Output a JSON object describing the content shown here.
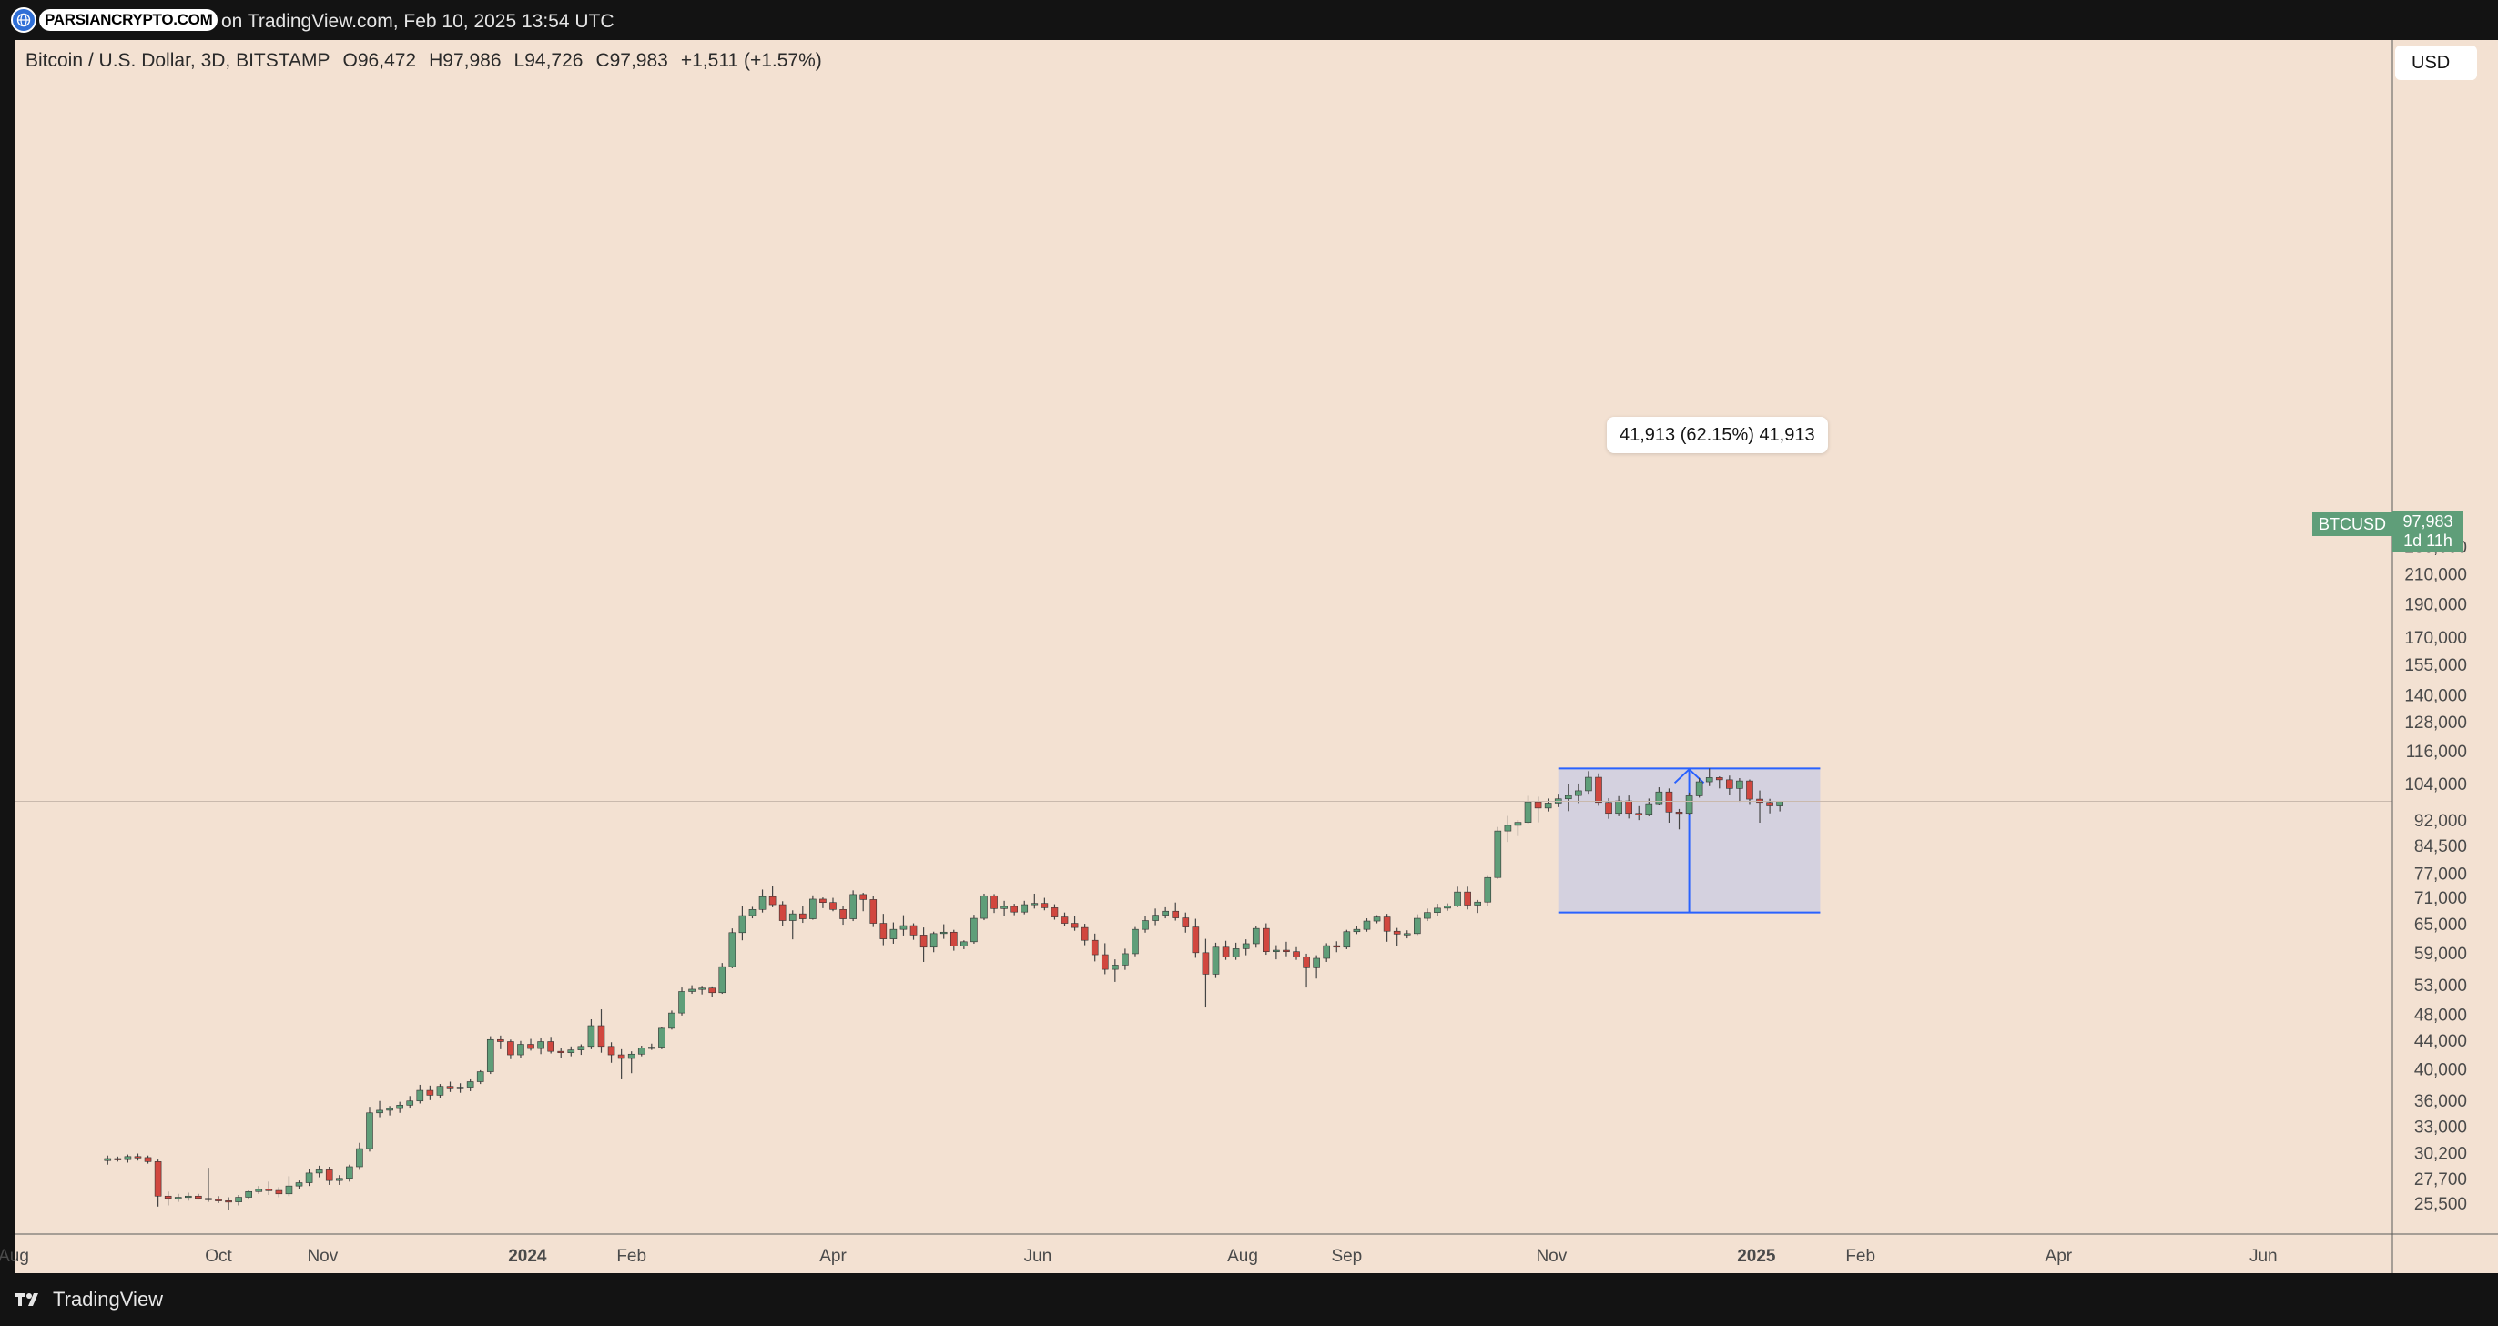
{
  "topbar": {
    "logo_text": "PARSIANCRYPTO.COM",
    "caption": "on TradingView.com, Feb 10, 2025 13:54 UTC"
  },
  "header": {
    "title": "Bitcoin / U.S. Dollar, 3D, BITSTAMP",
    "open": "O96,472",
    "high": "H97,986",
    "low": "L94,726",
    "close": "C97,983",
    "change": "+1,511 (+1.57%)"
  },
  "currency_button": "USD",
  "price_tag": {
    "symbol": "BTCUSD",
    "price": "97,983",
    "countdown": "1d 11h"
  },
  "measure": {
    "label": "41,913 (62.15%) 41,913"
  },
  "footer": {
    "brand": "TradingView"
  },
  "colors": {
    "up": "#5f9e79",
    "down": "#d1473f",
    "background": "#f3e1d2",
    "measure_fill": "#c9cbe3",
    "measure_line": "#2962ff"
  },
  "chart_data": {
    "type": "candlestick",
    "symbol": "BTCUSD",
    "interval": "3D",
    "y_scale": "log",
    "ylim": [
      23600,
      243000
    ],
    "xlim": [
      "2023-08-27",
      "2025-07-07"
    ],
    "grid": false,
    "y_ticks": [
      25500,
      27700,
      30200,
      33000,
      36000,
      40000,
      44000,
      48000,
      53000,
      59000,
      65000,
      71000,
      77000,
      84500,
      92000,
      104000,
      116000,
      128000,
      140000,
      155000,
      170000,
      190000,
      210000,
      230000
    ],
    "x_ticks": [
      {
        "label": "Aug",
        "date": "2023-08-01"
      },
      {
        "label": "Oct",
        "date": "2023-10-01"
      },
      {
        "label": "Nov",
        "date": "2023-11-01"
      },
      {
        "label": "2024",
        "date": "2024-01-01"
      },
      {
        "label": "Feb",
        "date": "2024-02-01"
      },
      {
        "label": "Apr",
        "date": "2024-04-01"
      },
      {
        "label": "Jun",
        "date": "2024-06-01"
      },
      {
        "label": "Aug",
        "date": "2024-08-01"
      },
      {
        "label": "Sep",
        "date": "2024-09-01"
      },
      {
        "label": "Nov",
        "date": "2024-11-01"
      },
      {
        "label": "2025",
        "date": "2025-01-01"
      },
      {
        "label": "Feb",
        "date": "2025-02-01"
      },
      {
        "label": "Apr",
        "date": "2025-04-01"
      },
      {
        "label": "Jun",
        "date": "2025-06-01"
      }
    ],
    "first_candle_date": "2023-08-29",
    "candle_interval_days": 3,
    "candles": [
      [
        29400,
        29900,
        29000,
        29600
      ],
      [
        29600,
        29800,
        29300,
        29500
      ],
      [
        29500,
        30000,
        29200,
        29800
      ],
      [
        29800,
        30100,
        29400,
        29700
      ],
      [
        29700,
        29900,
        29100,
        29300
      ],
      [
        29300,
        29500,
        25200,
        26100
      ],
      [
        26100,
        26500,
        25300,
        25900
      ],
      [
        25900,
        26300,
        25600,
        26000
      ],
      [
        26000,
        26400,
        25700,
        26100
      ],
      [
        26100,
        26300,
        25800,
        25900
      ],
      [
        25900,
        28700,
        25600,
        25800
      ],
      [
        25800,
        26100,
        25500,
        25700
      ],
      [
        25700,
        26000,
        24900,
        25600
      ],
      [
        25600,
        26200,
        25300,
        26000
      ],
      [
        26000,
        26600,
        25800,
        26500
      ],
      [
        26500,
        27000,
        26300,
        26700
      ],
      [
        26700,
        27400,
        26200,
        26600
      ],
      [
        26600,
        26900,
        26000,
        26300
      ],
      [
        26300,
        27900,
        26100,
        27000
      ],
      [
        27000,
        27500,
        26700,
        27300
      ],
      [
        27300,
        28600,
        27000,
        28200
      ],
      [
        28200,
        28900,
        27800,
        28500
      ],
      [
        28500,
        28800,
        27100,
        27500
      ],
      [
        27500,
        28000,
        27100,
        27700
      ],
      [
        27700,
        29000,
        27400,
        28800
      ],
      [
        28800,
        31200,
        28500,
        30600
      ],
      [
        30600,
        35200,
        30300,
        34500
      ],
      [
        34500,
        35900,
        34000,
        34800
      ],
      [
        34800,
        35300,
        34200,
        35000
      ],
      [
        35000,
        35800,
        34500,
        35400
      ],
      [
        35400,
        36500,
        35000,
        35900
      ],
      [
        35900,
        37900,
        35600,
        37200
      ],
      [
        37200,
        37800,
        36000,
        36600
      ],
      [
        36600,
        38000,
        36200,
        37700
      ],
      [
        37700,
        38300,
        37000,
        37400
      ],
      [
        37400,
        38100,
        36900,
        37600
      ],
      [
        37600,
        38600,
        37100,
        38300
      ],
      [
        38300,
        39800,
        38000,
        39600
      ],
      [
        39600,
        44600,
        39300,
        44100
      ],
      [
        44100,
        44700,
        42700,
        43800
      ],
      [
        43800,
        44100,
        41300,
        41900
      ],
      [
        41900,
        43900,
        41500,
        43400
      ],
      [
        43400,
        44200,
        42500,
        42800
      ],
      [
        42800,
        44300,
        42000,
        43800
      ],
      [
        43800,
        44500,
        42100,
        42400
      ],
      [
        42400,
        42900,
        41400,
        42200
      ],
      [
        42200,
        43100,
        41700,
        42600
      ],
      [
        42600,
        43400,
        41900,
        43100
      ],
      [
        43100,
        47200,
        42700,
        46200
      ],
      [
        46200,
        48800,
        42200,
        43100
      ],
      [
        43100,
        43700,
        40800,
        41900
      ],
      [
        41900,
        42700,
        38600,
        41400
      ],
      [
        41400,
        42400,
        39400,
        42000
      ],
      [
        42000,
        43200,
        41700,
        42900
      ],
      [
        42900,
        43500,
        42600,
        43000
      ],
      [
        43000,
        46000,
        42700,
        45800
      ],
      [
        45800,
        48600,
        45600,
        48200
      ],
      [
        48200,
        52500,
        47800,
        51800
      ],
      [
        51800,
        52900,
        51400,
        52200
      ],
      [
        52200,
        52800,
        51300,
        52400
      ],
      [
        52400,
        52700,
        50800,
        51600
      ],
      [
        51600,
        57000,
        51400,
        56300
      ],
      [
        56300,
        64000,
        56000,
        63100
      ],
      [
        63100,
        69100,
        61500,
        66800
      ],
      [
        66800,
        68800,
        66200,
        68200
      ],
      [
        68200,
        72900,
        67500,
        71200
      ],
      [
        71200,
        73800,
        68700,
        69300
      ],
      [
        69300,
        70100,
        64500,
        65700
      ],
      [
        65700,
        68000,
        61700,
        67200
      ],
      [
        67200,
        68900,
        65200,
        66100
      ],
      [
        66100,
        71500,
        65900,
        70600
      ],
      [
        70600,
        71000,
        68500,
        69800
      ],
      [
        69800,
        70900,
        67800,
        68200
      ],
      [
        68200,
        69000,
        64800,
        66100
      ],
      [
        66100,
        72700,
        65600,
        71700
      ],
      [
        71700,
        72100,
        67800,
        70500
      ],
      [
        70500,
        71300,
        64300,
        65100
      ],
      [
        65100,
        67200,
        60500,
        61800
      ],
      [
        61800,
        65300,
        60800,
        63800
      ],
      [
        63800,
        66900,
        62500,
        64600
      ],
      [
        64600,
        65100,
        61600,
        62600
      ],
      [
        62600,
        64200,
        57200,
        60100
      ],
      [
        60100,
        63300,
        59100,
        62900
      ],
      [
        62900,
        64900,
        61800,
        63200
      ],
      [
        63200,
        63700,
        59400,
        60300
      ],
      [
        60300,
        61500,
        59700,
        61200
      ],
      [
        61200,
        67000,
        60800,
        66200
      ],
      [
        66200,
        71900,
        65800,
        71400
      ],
      [
        71400,
        71800,
        67400,
        68400
      ],
      [
        68400,
        70200,
        66700,
        68900
      ],
      [
        68900,
        69500,
        66900,
        67600
      ],
      [
        67600,
        70200,
        67100,
        69300
      ],
      [
        69300,
        71900,
        68400,
        69600
      ],
      [
        69600,
        70900,
        68000,
        68600
      ],
      [
        68600,
        69400,
        65900,
        66500
      ],
      [
        66500,
        67500,
        64500,
        65100
      ],
      [
        65100,
        66800,
        63500,
        64200
      ],
      [
        64200,
        65000,
        60500,
        61500
      ],
      [
        61500,
        62900,
        57300,
        58600
      ],
      [
        58600,
        60900,
        54900,
        55800
      ],
      [
        55800,
        57700,
        53500,
        56600
      ],
      [
        56600,
        59800,
        55700,
        58800
      ],
      [
        58800,
        64300,
        58300,
        63800
      ],
      [
        63800,
        66800,
        63100,
        65700
      ],
      [
        65700,
        68400,
        64700,
        66900
      ],
      [
        66900,
        68700,
        66200,
        67800
      ],
      [
        67800,
        69800,
        65700,
        66300
      ],
      [
        66300,
        67500,
        63100,
        64300
      ],
      [
        64300,
        66100,
        58000,
        59000
      ],
      [
        59000,
        61800,
        49100,
        54900
      ],
      [
        54900,
        61000,
        54200,
        60100
      ],
      [
        60100,
        61400,
        57600,
        58200
      ],
      [
        58200,
        61000,
        57600,
        59800
      ],
      [
        59800,
        61700,
        58500,
        60800
      ],
      [
        60800,
        64500,
        60000,
        64000
      ],
      [
        64000,
        65100,
        58600,
        59200
      ],
      [
        59200,
        60500,
        57700,
        59500
      ],
      [
        59500,
        61200,
        58300,
        59200
      ],
      [
        59200,
        60100,
        57600,
        58200
      ],
      [
        58200,
        58800,
        52500,
        56100
      ],
      [
        56100,
        58500,
        54100,
        57900
      ],
      [
        57900,
        60900,
        57200,
        60400
      ],
      [
        60400,
        61300,
        59100,
        60100
      ],
      [
        60100,
        63700,
        59700,
        63300
      ],
      [
        63300,
        64500,
        62800,
        63800
      ],
      [
        63800,
        66200,
        63300,
        65600
      ],
      [
        65600,
        66900,
        65100,
        66500
      ],
      [
        66500,
        67200,
        61200,
        63400
      ],
      [
        63400,
        64100,
        60300,
        62800
      ],
      [
        62800,
        63600,
        61900,
        62900
      ],
      [
        62900,
        67100,
        62600,
        66200
      ],
      [
        66200,
        68400,
        65600,
        67500
      ],
      [
        67500,
        69500,
        66800,
        68500
      ],
      [
        68500,
        69600,
        67900,
        69000
      ],
      [
        69000,
        73600,
        68700,
        72300
      ],
      [
        72300,
        73600,
        68200,
        69200
      ],
      [
        69200,
        70400,
        67400,
        69900
      ],
      [
        69900,
        76500,
        69100,
        75900
      ],
      [
        75900,
        89900,
        75500,
        88700
      ],
      [
        88700,
        93300,
        85500,
        90400
      ],
      [
        90400,
        92000,
        87200,
        91300
      ],
      [
        91300,
        99800,
        90900,
        97800
      ],
      [
        97800,
        99500,
        91300,
        95800
      ],
      [
        95800,
        98900,
        94700,
        97400
      ],
      [
        97400,
        100500,
        96100,
        98800
      ],
      [
        98800,
        103700,
        94800,
        99900
      ],
      [
        99900,
        104000,
        97400,
        101500
      ],
      [
        101500,
        108400,
        100500,
        106200
      ],
      [
        106200,
        107600,
        96500,
        97600
      ],
      [
        97600,
        99000,
        92400,
        94100
      ],
      [
        94100,
        99700,
        93200,
        98100
      ],
      [
        98100,
        99900,
        92500,
        94100
      ],
      [
        94100,
        96400,
        92000,
        93800
      ],
      [
        93800,
        98900,
        93200,
        97200
      ],
      [
        97200,
        102700,
        96800,
        101100
      ],
      [
        101100,
        102300,
        91200,
        94500
      ],
      [
        94500,
        95500,
        89200,
        94100
      ],
      [
        94100,
        100900,
        93800,
        99800
      ],
      [
        99800,
        106000,
        99200,
        104600
      ],
      [
        104600,
        109400,
        103100,
        106100
      ],
      [
        106100,
        106500,
        102300,
        105300
      ],
      [
        105300,
        106800,
        100000,
        102300
      ],
      [
        102300,
        105900,
        97800,
        104900
      ],
      [
        104900,
        105400,
        97100,
        98700
      ],
      [
        98700,
        101600,
        91200,
        97600
      ],
      [
        97600,
        98800,
        94100,
        96500
      ],
      [
        96472,
        97986,
        94726,
        97983
      ]
    ],
    "annotation": {
      "type": "date-price-range",
      "start_date": "2024-11-03",
      "end_date": "2025-01-20",
      "low": 67500,
      "high": 109400,
      "label": "41,913 (62.15%) 41,913"
    },
    "last_price": 97983
  }
}
